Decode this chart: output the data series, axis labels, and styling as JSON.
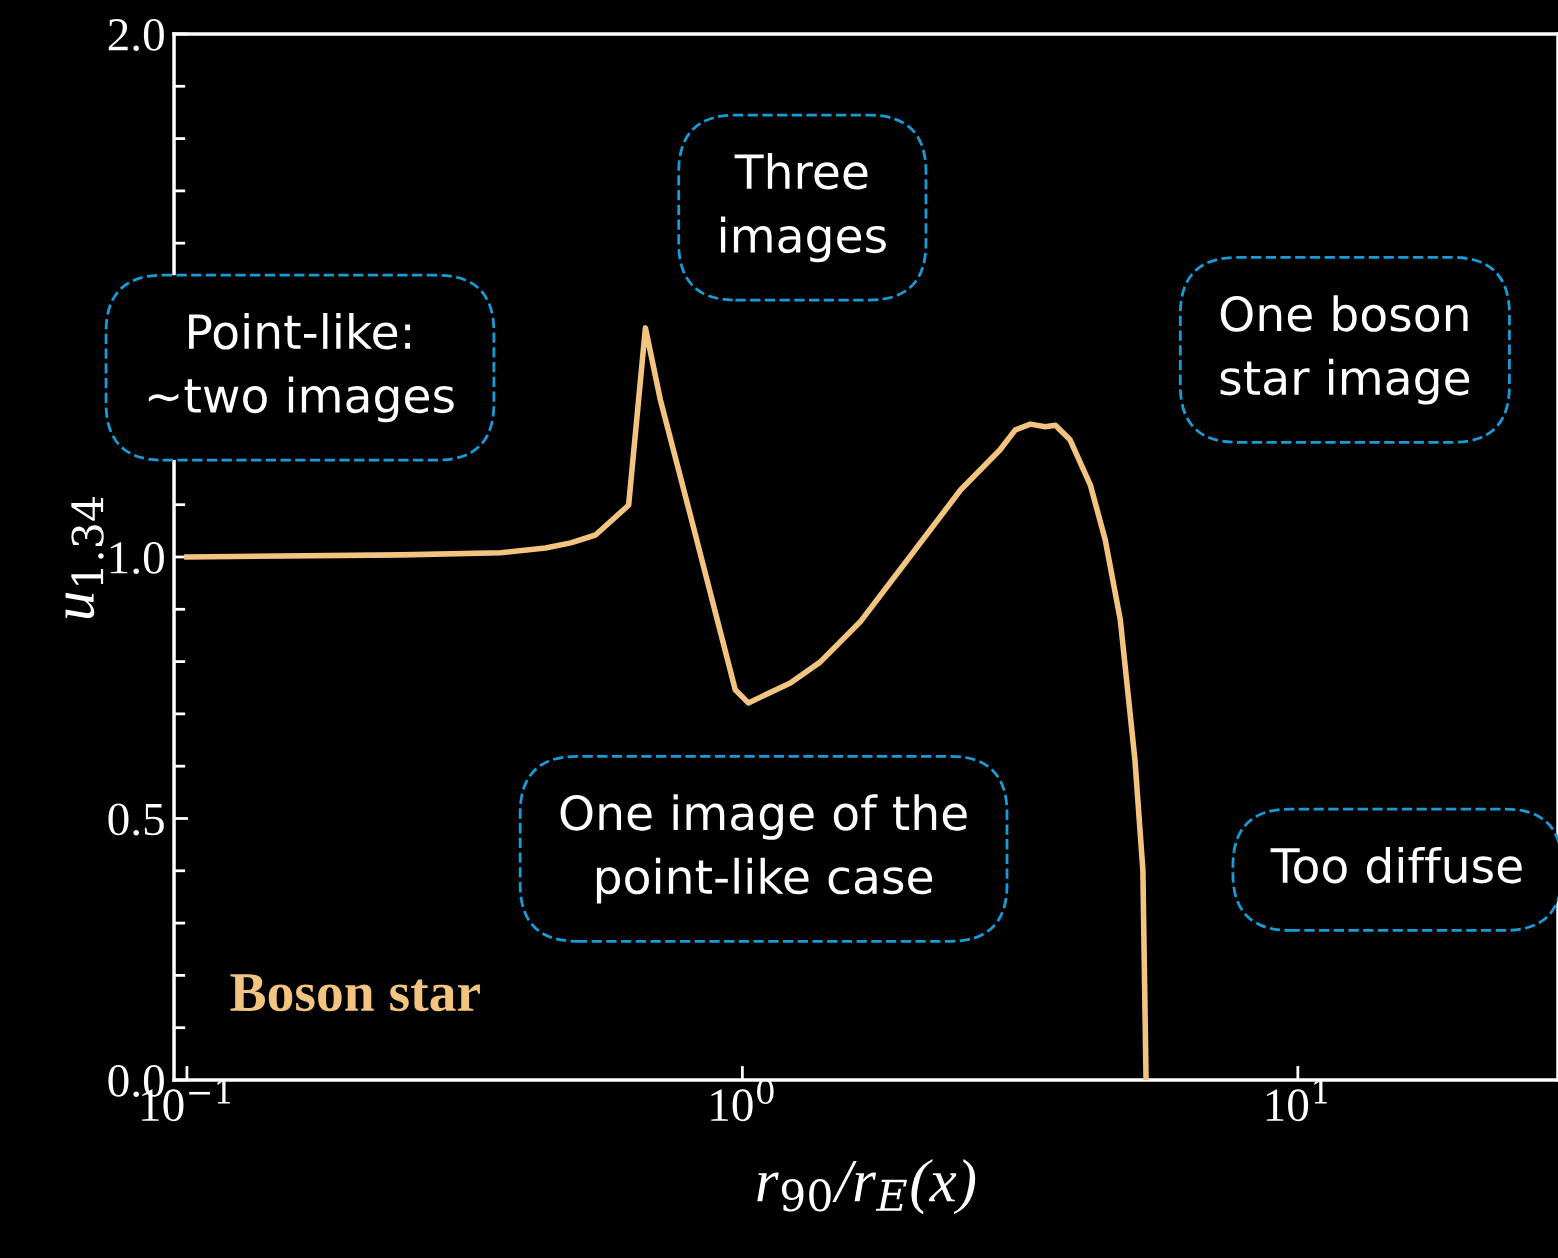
{
  "chart_data": {
    "type": "line",
    "xlabel": "r$_{90}$/r$_{E}$(x)",
    "ylabel": "u$_{1.34}$",
    "log": "x",
    "xlim": [
      0.0948,
      29.4
    ],
    "ylim": [
      0,
      2
    ],
    "xticks": [
      {
        "value": 0.1,
        "label": "10$^{−1}$"
      },
      {
        "value": 1,
        "label": "10$^{0}$"
      },
      {
        "value": 10,
        "label": "10$^{1}$"
      }
    ],
    "yticks": [
      {
        "value": 0,
        "label": "0.0"
      },
      {
        "value": 0.5,
        "label": "0.5"
      },
      {
        "value": 1,
        "label": "1.0"
      },
      {
        "value": 1.5,
        "label": null
      },
      {
        "value": 2,
        "label": "2.0"
      }
    ],
    "grid": false,
    "legend": false,
    "marker": "none",
    "line_style": "solid",
    "series": [
      {
        "name": "Boson star",
        "color": "#f2c47f",
        "x": [
          0.1,
          0.243,
          0.367,
          0.442,
          0.491,
          0.544,
          0.624,
          0.669,
          0.712,
          0.806,
          0.971,
          1.025,
          1.22,
          1.38,
          1.63,
          1.92,
          2.47,
          2.91,
          3.1,
          3.3,
          3.51,
          3.66,
          3.89,
          4.23,
          4.5,
          4.79,
          5.09,
          5.26,
          5.33
        ],
        "values": [
          1.0,
          1.004,
          1.008,
          1.017,
          1.027,
          1.042,
          1.099,
          1.438,
          1.3,
          1.08,
          0.746,
          0.721,
          0.759,
          0.799,
          0.876,
          0.975,
          1.128,
          1.205,
          1.243,
          1.254,
          1.249,
          1.252,
          1.224,
          1.138,
          1.033,
          0.88,
          0.612,
          0.402,
          0.0
        ]
      }
    ],
    "annotations": [
      "Point-like:\n~two images",
      "Three\nimages",
      "One boson\nstar image",
      "One image of the\npoint-like case",
      "Too diffuse"
    ]
  }
}
